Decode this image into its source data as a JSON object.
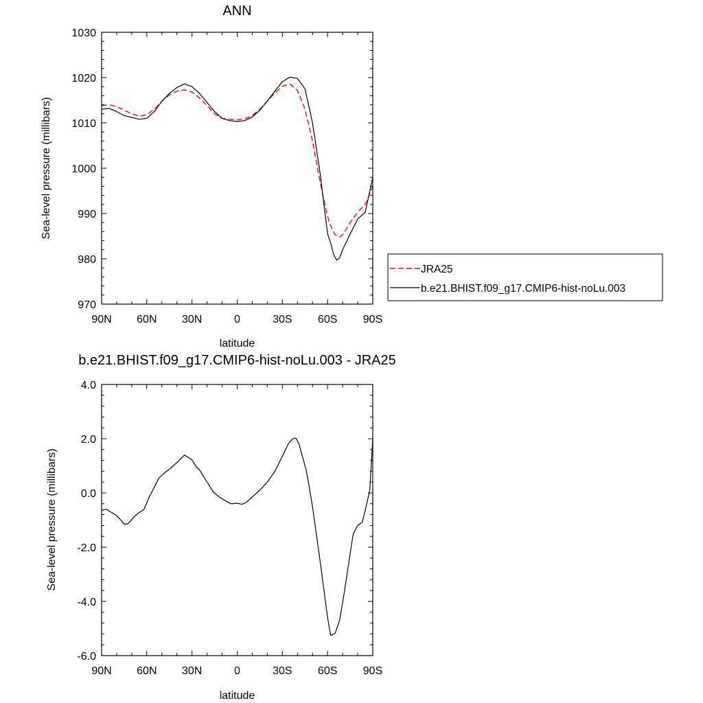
{
  "chart_data": [
    {
      "type": "line",
      "title": "ANN",
      "xlabel": "latitude",
      "ylabel": "Sea-level pressure (millibars)",
      "xlim": [
        90,
        -90
      ],
      "ylim": [
        970,
        1030
      ],
      "x_tick_values": [
        90,
        60,
        30,
        0,
        -30,
        -60,
        -90
      ],
      "x_tick_labels": [
        "90N",
        "60N",
        "30N",
        "0",
        "30S",
        "60S",
        "90S"
      ],
      "y_tick_values": [
        970,
        980,
        990,
        1000,
        1010,
        1020,
        1030
      ],
      "y_tick_labels": [
        "970",
        "980",
        "990",
        "1000",
        "1010",
        "1020",
        "1030"
      ],
      "grid": false,
      "legend_position": "right",
      "series": [
        {
          "name": "JRA25",
          "color": "#ff0000",
          "dash": "dashed",
          "x": [
            90,
            85,
            80,
            75,
            70,
            65,
            60,
            55,
            50,
            45,
            40,
            35,
            30,
            25,
            20,
            15,
            10,
            5,
            0,
            -5,
            -10,
            -15,
            -20,
            -25,
            -30,
            -35,
            -40,
            -45,
            -50,
            -55,
            -60,
            -62,
            -65,
            -68,
            -70,
            -75,
            -80,
            -85,
            -90
          ],
          "y": [
            1013.8,
            1014.0,
            1013.6,
            1012.8,
            1012.0,
            1011.5,
            1011.8,
            1013.0,
            1014.8,
            1016.2,
            1017.0,
            1017.3,
            1016.8,
            1015.5,
            1013.8,
            1012.0,
            1011.0,
            1010.8,
            1010.7,
            1010.9,
            1011.6,
            1013.0,
            1014.8,
            1016.6,
            1018.1,
            1018.6,
            1017.2,
            1013.0,
            1006.0,
            997.0,
            989.3,
            987.3,
            985.3,
            984.8,
            985.3,
            988.0,
            990.3,
            992.0,
            996.0
          ]
        },
        {
          "name": "b.e21.BHIST.f09_g17.CMIP6-hist-noLu.003",
          "color": "#000000",
          "dash": "solid",
          "x": [
            90,
            85,
            80,
            75,
            70,
            65,
            60,
            55,
            50,
            45,
            40,
            35,
            30,
            25,
            20,
            15,
            10,
            5,
            0,
            -5,
            -10,
            -15,
            -20,
            -25,
            -30,
            -35,
            -40,
            -45,
            -50,
            -55,
            -58,
            -60,
            -62,
            -64,
            -66,
            -68,
            -70,
            -75,
            -80,
            -85,
            -90
          ],
          "y": [
            1013.0,
            1013.2,
            1012.5,
            1011.6,
            1011.2,
            1010.8,
            1011.0,
            1012.5,
            1014.8,
            1016.5,
            1017.8,
            1018.6,
            1018.0,
            1016.5,
            1014.5,
            1012.5,
            1011.0,
            1010.5,
            1010.3,
            1010.5,
            1011.3,
            1012.8,
            1014.8,
            1017.0,
            1019.1,
            1020.1,
            1019.8,
            1017.5,
            1010.0,
            999.0,
            990.8,
            985.5,
            983.5,
            981.0,
            979.7,
            980.2,
            982.0,
            985.5,
            988.8,
            990.3,
            998.0
          ]
        }
      ]
    },
    {
      "type": "line",
      "title": "b.e21.BHIST.f09_g17.CMIP6-hist-noLu.003 - JRA25",
      "xlabel": "latitude",
      "ylabel": "Sea-level pressure (millibars)",
      "xlim": [
        90,
        -90
      ],
      "ylim": [
        -6,
        4
      ],
      "x_tick_values": [
        90,
        60,
        30,
        0,
        -30,
        -60,
        -90
      ],
      "x_tick_labels": [
        "90N",
        "60N",
        "30N",
        "0",
        "30S",
        "60S",
        "90S"
      ],
      "y_tick_values": [
        -6,
        -4,
        -2,
        0,
        2,
        4
      ],
      "y_tick_labels": [
        "-6.0",
        "-4.0",
        "-2.0",
        "0.0",
        "2.0",
        "4.0"
      ],
      "grid": false,
      "series": [
        {
          "color": "#000000",
          "dash": "solid",
          "x": [
            90,
            87,
            84,
            81,
            78,
            75,
            73,
            71,
            68,
            65,
            62,
            58,
            56,
            52,
            48,
            44,
            40,
            35,
            30,
            27,
            25,
            20,
            16,
            12,
            8,
            4,
            0,
            -3,
            -6,
            -10,
            -15,
            -20,
            -25,
            -30,
            -34,
            -37,
            -39,
            -41,
            -43,
            -46,
            -50,
            -55,
            -60,
            -62,
            -65,
            -68,
            -71,
            -74,
            -77,
            -80,
            -83,
            -85,
            -88,
            -90
          ],
          "y": [
            -0.65,
            -0.6,
            -0.7,
            -0.8,
            -0.95,
            -1.15,
            -1.15,
            -1.05,
            -0.85,
            -0.72,
            -0.62,
            -0.1,
            0.1,
            0.55,
            0.75,
            0.92,
            1.12,
            1.4,
            1.22,
            0.95,
            0.85,
            0.4,
            0.05,
            -0.15,
            -0.28,
            -0.4,
            -0.38,
            -0.42,
            -0.35,
            -0.15,
            0.1,
            0.4,
            0.8,
            1.35,
            1.82,
            2.0,
            2.02,
            1.8,
            1.4,
            0.8,
            -0.5,
            -2.5,
            -4.6,
            -5.25,
            -5.18,
            -4.7,
            -3.7,
            -2.6,
            -1.5,
            -1.2,
            -1.08,
            -0.65,
            0.1,
            2.0
          ]
        }
      ]
    }
  ]
}
